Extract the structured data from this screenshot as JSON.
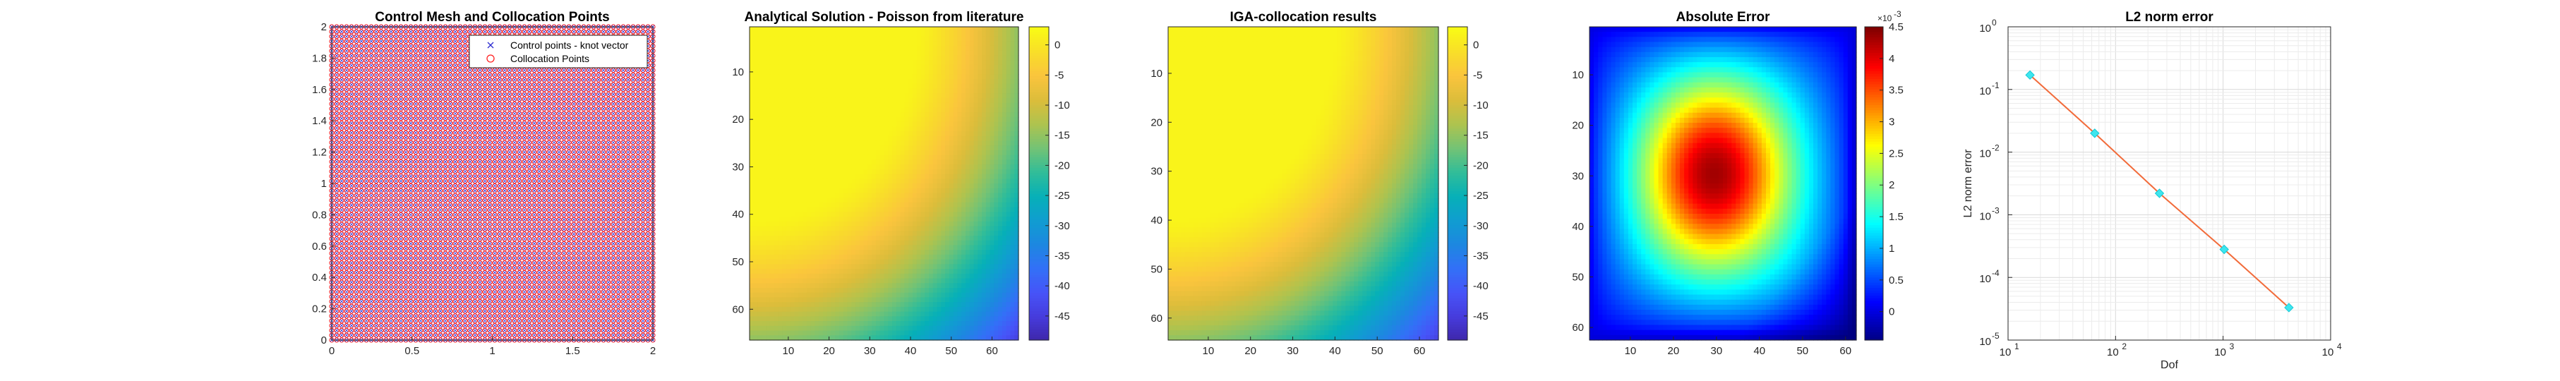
{
  "chart_data": [
    {
      "id": "mesh",
      "type": "scatter",
      "title": "Control Mesh and Collocation Points",
      "xlim": [
        0,
        2
      ],
      "ylim": [
        0,
        2
      ],
      "xticks": [
        0,
        0.5,
        1,
        1.5,
        2
      ],
      "yticks": [
        0,
        0.2,
        0.4,
        0.6,
        0.8,
        1,
        1.2,
        1.4,
        1.6,
        1.8,
        2
      ],
      "grid_points_per_side": 66,
      "legend_position": "top-right",
      "series": [
        {
          "name": "Control points - knot vector",
          "marker": "x",
          "color": "#2b2bd0"
        },
        {
          "name": "Collocation Points",
          "marker": "o",
          "color": "#ff2020"
        }
      ]
    },
    {
      "id": "analytical",
      "type": "heatmap",
      "title": "Analytical Solution - Poisson from literature",
      "grid_size": 66,
      "xticks": [
        10,
        20,
        30,
        40,
        50,
        60
      ],
      "yticks": [
        10,
        20,
        30,
        40,
        50,
        60
      ],
      "colormap": "parula",
      "clim": [
        -49,
        3
      ],
      "colorbar_ticks": [
        0,
        -5,
        -10,
        -15,
        -20,
        -25,
        -30,
        -35,
        -40,
        -45
      ]
    },
    {
      "id": "iga",
      "type": "heatmap",
      "title": "IGA-collocation results",
      "grid_size": 64,
      "xticks": [
        10,
        20,
        30,
        40,
        50,
        60
      ],
      "yticks": [
        10,
        20,
        30,
        40,
        50,
        60
      ],
      "colormap": "parula",
      "clim": [
        -49,
        3
      ],
      "colorbar_ticks": [
        0,
        -5,
        -10,
        -15,
        -20,
        -25,
        -30,
        -35,
        -40,
        -45
      ]
    },
    {
      "id": "error",
      "type": "heatmap",
      "title": "Absolute Error",
      "grid_size": 62,
      "xticks": [
        10,
        20,
        30,
        40,
        50,
        60
      ],
      "yticks": [
        10,
        20,
        30,
        40,
        50,
        60
      ],
      "colormap": "jet",
      "clim": [
        -0.00045,
        0.0045
      ],
      "colorbar_ticks": [
        0,
        0.5,
        1,
        1.5,
        2,
        2.5,
        3,
        3.5,
        4,
        4.5
      ],
      "colorbar_multiplier": "×10",
      "colorbar_exponent": "-3"
    },
    {
      "id": "l2",
      "type": "line",
      "title": "L2 norm error",
      "xlabel": "Dof",
      "ylabel": "L2 norm error",
      "xscale": "log",
      "yscale": "log",
      "xlim": [
        10,
        10000
      ],
      "ylim": [
        1e-05,
        1
      ],
      "x_tick_exponents": [
        1,
        2,
        3,
        4
      ],
      "y_tick_exponents": [
        -5,
        -4,
        -3,
        -2,
        -1,
        0
      ],
      "grid": true,
      "line_color": "#f26b3a",
      "marker_color": "#3ee6ee",
      "x": [
        16,
        64,
        256,
        1024,
        4096
      ],
      "y": [
        0.17,
        0.02,
        0.0022,
        0.00028,
        3.3e-05
      ]
    }
  ]
}
